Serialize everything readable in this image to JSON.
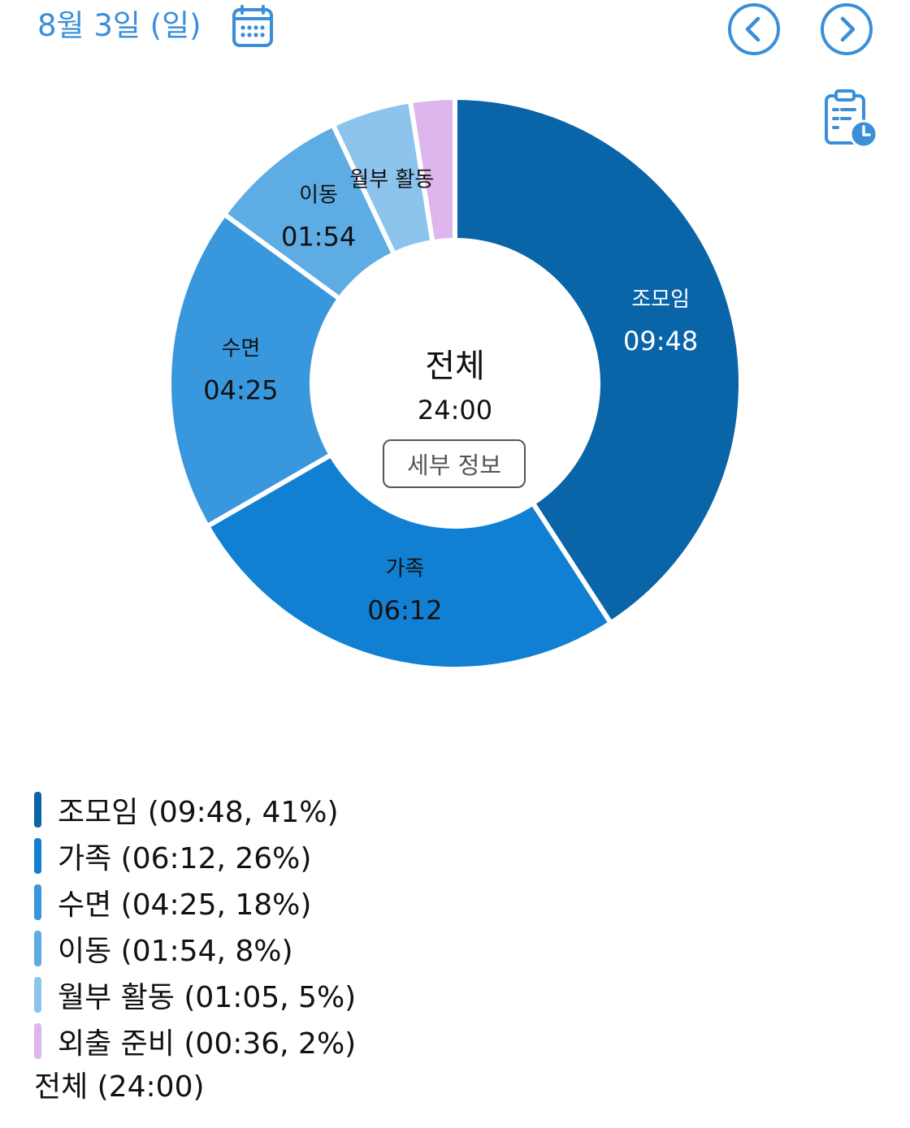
{
  "header": {
    "date": "8월 3일 (일)",
    "calendar_icon": "calendar-icon",
    "prev_icon": "chevron-left-circle-icon",
    "next_icon": "chevron-right-circle-icon",
    "report_icon": "clipboard-clock-icon",
    "accent_color": "#3a8fd8"
  },
  "chart_data": {
    "type": "pie",
    "total": {
      "label": "전체",
      "value": "24:00"
    },
    "slices": [
      {
        "name": "조모임",
        "time": "09:48",
        "percent": 41,
        "minutes": 588,
        "color": "#0a64a8",
        "label_color": "#ffffff",
        "chart_label": "조모임"
      },
      {
        "name": "가족",
        "time": "06:12",
        "percent": 26,
        "minutes": 372,
        "color": "#1280d2",
        "label_color": "#111111",
        "chart_label": "가족"
      },
      {
        "name": "수면",
        "time": "04:25",
        "percent": 18,
        "minutes": 265,
        "color": "#3997dd",
        "label_color": "#111111",
        "chart_label": "수면"
      },
      {
        "name": "이동",
        "time": "01:54",
        "percent": 8,
        "minutes": 114,
        "color": "#5eace4",
        "label_color": "#111111",
        "chart_label": "이동"
      },
      {
        "name": "월부 활동",
        "time": "01:05",
        "percent": 5,
        "minutes": 65,
        "color": "#8cc4ee",
        "label_color": "#111111",
        "chart_label": "월부 활동"
      },
      {
        "name": "외출 준비",
        "time": "00:36",
        "percent": 2,
        "minutes": 36,
        "color": "#dcb6ec",
        "label_color": "#111111",
        "chart_label": ""
      }
    ]
  },
  "center": {
    "title": "전체",
    "total": "24:00",
    "detail_button": "세부 정보"
  },
  "legend": {
    "items": [
      "조모임 (09:48, 41%)",
      "가족 (06:12, 26%)",
      "수면 (04:25, 18%)",
      "이동 (01:54, 8%)",
      "월부 활동 (01:05, 5%)",
      "외출 준비 (00:36, 2%)"
    ],
    "total": "전체 (24:00)"
  }
}
